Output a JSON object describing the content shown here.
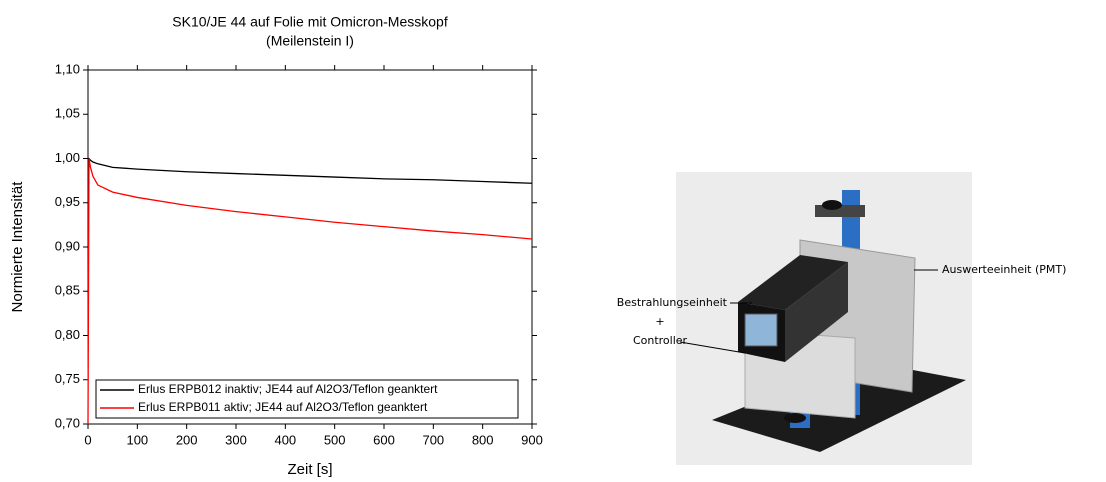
{
  "chart_data": {
    "type": "line",
    "title": "SK10/JE 44 auf Folie mit Omicron-Messkopf",
    "subtitle": "(Meilenstein I)",
    "x_label": "Zeit [s]",
    "y_label": "Normierte Intensität",
    "x": [
      0,
      2,
      5,
      10,
      20,
      50,
      100,
      200,
      300,
      400,
      500,
      600,
      700,
      800,
      900
    ],
    "series": [
      {
        "name": "Erlus ERPB012 inaktiv; JE44 auf Al2O3/Teflon geanktert",
        "color": "#000000",
        "values": [
          1.0,
          1.0,
          0.998,
          0.996,
          0.994,
          0.99,
          0.988,
          0.985,
          0.983,
          0.981,
          0.979,
          0.977,
          0.976,
          0.974,
          0.972
        ]
      },
      {
        "name": "Erlus ERPB011 aktiv; JE44 auf Al2O3/Teflon geanktert",
        "color": "#ff0000",
        "values": [
          0.7,
          1.0,
          0.99,
          0.98,
          0.97,
          0.962,
          0.956,
          0.947,
          0.94,
          0.934,
          0.928,
          0.923,
          0.918,
          0.914,
          0.909
        ]
      }
    ],
    "xlim": [
      0,
      900
    ],
    "xticks": [
      0,
      100,
      200,
      300,
      400,
      500,
      600,
      700,
      800,
      900
    ],
    "ylim": [
      0.7,
      1.1
    ],
    "yticks": [
      {
        "value": 0.7,
        "label": "0,70"
      },
      {
        "value": 0.75,
        "label": "0,75"
      },
      {
        "value": 0.8,
        "label": "0,80"
      },
      {
        "value": 0.85,
        "label": "0,85"
      },
      {
        "value": 0.9,
        "label": "0,90"
      },
      {
        "value": 0.95,
        "label": "0,95"
      },
      {
        "value": 1.0,
        "label": "1,00"
      },
      {
        "value": 1.05,
        "label": "1,05"
      },
      {
        "value": 1.1,
        "label": "1,10"
      }
    ],
    "grid": false,
    "legend": "lower left"
  },
  "photo": {
    "labels": [
      "Bestrahlungseinheit",
      "+",
      "Controller",
      "Auswerteeinheit (PMT)"
    ]
  }
}
